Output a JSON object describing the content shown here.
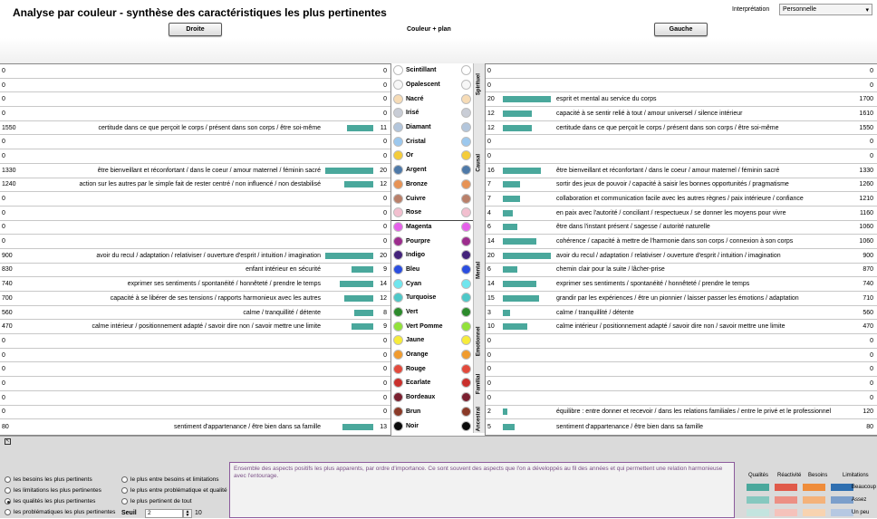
{
  "header": {
    "title": "Analyse par couleur - synthèse des caractéristiques les plus pertinentes",
    "interpretation_label": "Interprétation",
    "interpretation_value": "Personnelle",
    "left_button": "Droite",
    "right_button": "Gauche",
    "center_title": "Couleur + plan"
  },
  "rows": [
    {
      "color": "Scintillant",
      "hex": "#ffffff",
      "lt": "0",
      "ld": "",
      "lc": "0",
      "lb": 0,
      "rc": "0",
      "rd": "",
      "rb": 0,
      "rt": "0"
    },
    {
      "color": "Opalescent",
      "hex": "#f7f7f7",
      "lt": "0",
      "ld": "",
      "lc": "0",
      "lb": 0,
      "rc": "0",
      "rd": "",
      "rb": 0,
      "rt": "0"
    },
    {
      "color": "Nacré",
      "hex": "#f7dcb6",
      "lt": "0",
      "ld": "",
      "lc": "0",
      "lb": 0,
      "rc": "20",
      "rd": "esprit et mental au service du corps",
      "rb": 20,
      "rt": "1700"
    },
    {
      "color": "Irisé",
      "hex": "#c9cdd6",
      "lt": "0",
      "ld": "",
      "lc": "0",
      "lb": 0,
      "rc": "12",
      "rd": "capacité à se sentir relié à tout / amour universel / silence intérieur",
      "rb": 12,
      "rt": "1610"
    },
    {
      "color": "Diamant",
      "hex": "#b3c6dc",
      "lt": "1550",
      "ld": "certitude dans ce que perçoit le corps / présent dans son corps / être soi-même",
      "lc": "11",
      "lb": 11,
      "rc": "12",
      "rd": "certitude dans ce que perçoit le corps / présent dans son corps / être soi-même",
      "rb": 12,
      "rt": "1550"
    },
    {
      "color": "Cristal",
      "hex": "#9cc8ee",
      "lt": "0",
      "ld": "",
      "lc": "0",
      "lb": 0,
      "rc": "0",
      "rd": "",
      "rb": 0,
      "rt": "0"
    },
    {
      "color": "Or",
      "hex": "#f4cc3a",
      "lt": "0",
      "ld": "",
      "lc": "0",
      "lb": 0,
      "rc": "0",
      "rd": "",
      "rb": 0,
      "rt": "0"
    },
    {
      "color": "Argent",
      "hex": "#4e79a8",
      "lt": "1330",
      "ld": "être bienveillant et réconfortant / dans le coeur / amour maternel / féminin sacré",
      "lc": "20",
      "lb": 20,
      "rc": "16",
      "rd": "être bienveillant et réconfortant / dans le coeur / amour maternel / féminin sacré",
      "rb": 16,
      "rt": "1330"
    },
    {
      "color": "Bronze",
      "hex": "#e79355",
      "lt": "1240",
      "ld": "action sur les autres par le simple fait de rester centré / non influencé / non destabilisé",
      "lc": "12",
      "lb": 12,
      "rc": "7",
      "rd": "sortir des jeux de pouvoir / capacité à saisir les bonnes opportunités / pragmatisme",
      "rb": 7,
      "rt": "1260"
    },
    {
      "color": "Cuivre",
      "hex": "#b9806a",
      "lt": "0",
      "ld": "",
      "lc": "0",
      "lb": 0,
      "rc": "7",
      "rd": "collaboration et communication facile avec les autres règnes / paix intérieure / confiance",
      "rb": 7,
      "rt": "1210"
    },
    {
      "color": "Rose",
      "hex": "#f2bfcf",
      "lt": "0",
      "ld": "",
      "lc": "0",
      "lb": 0,
      "rc": "4",
      "rd": "en paix avec l'autorité / conciliant / respectueux / se donner les moyens pour vivre",
      "rb": 4,
      "rt": "1160"
    },
    {
      "color": "Magenta",
      "hex": "#e560e9",
      "lt": "0",
      "ld": "",
      "lc": "0",
      "lb": 0,
      "rc": "6",
      "rd": "être dans l'instant présent / sagesse / autorité naturelle",
      "rb": 6,
      "rt": "1060"
    },
    {
      "color": "Pourpre",
      "hex": "#9c2d8d",
      "lt": "0",
      "ld": "",
      "lc": "0",
      "lb": 0,
      "rc": "14",
      "rd": "cohérence / capacité à mettre de l'harmonie dans son corps / connexion à son corps",
      "rb": 14,
      "rt": "1060"
    },
    {
      "color": "Indigo",
      "hex": "#43237a",
      "lt": "900",
      "ld": "avoir du recul / adaptation /  relativiser / ouverture d'esprit / intuition / imagination",
      "lc": "20",
      "lb": 20,
      "rc": "20",
      "rd": "avoir du recul / adaptation /  relativiser / ouverture d'esprit / intuition / imagination",
      "rb": 20,
      "rt": "900"
    },
    {
      "color": "Bleu",
      "hex": "#2b4ee0",
      "lt": "830",
      "ld": "enfant intérieur en sécurité",
      "lc": "9",
      "lb": 9,
      "rc": "6",
      "rd": "chemin clair pour la suite / lâcher-prise",
      "rb": 6,
      "rt": "870"
    },
    {
      "color": "Cyan",
      "hex": "#70e6ee",
      "lt": "740",
      "ld": "exprimer ses sentiments / spontanéité / honnêteté / prendre le temps",
      "lc": "14",
      "lb": 14,
      "rc": "14",
      "rd": "exprimer ses sentiments / spontanéité / honnêteté / prendre le temps",
      "rb": 14,
      "rt": "740"
    },
    {
      "color": "Turquoise",
      "hex": "#4ec8c8",
      "lt": "700",
      "ld": "capacité à se libérer de ses tensions / rapports harmonieux avec les autres",
      "lc": "12",
      "lb": 12,
      "rc": "15",
      "rd": "grandir par les expériences / être un pionnier / laisser passer les émotions / adaptation",
      "rb": 15,
      "rt": "710"
    },
    {
      "color": "Vert",
      "hex": "#2c8a2c",
      "lt": "560",
      "ld": "calme / tranquillité / détente",
      "lc": "8",
      "lb": 8,
      "rc": "3",
      "rd": "calme / tranquillité / détente",
      "rb": 3,
      "rt": "560"
    },
    {
      "color": "Vert Pomme",
      "hex": "#92e23a",
      "lt": "470",
      "ld": "calme intérieur / positionnement adapté / savoir dire non / savoir mettre une limite",
      "lc": "9",
      "lb": 9,
      "rc": "10",
      "rd": "calme intérieur / positionnement adapté / savoir dire non / savoir mettre une limite",
      "rb": 10,
      "rt": "470"
    },
    {
      "color": "Jaune",
      "hex": "#f7ec3a",
      "lt": "0",
      "ld": "",
      "lc": "0",
      "lb": 0,
      "rc": "0",
      "rd": "",
      "rb": 0,
      "rt": "0"
    },
    {
      "color": "Orange",
      "hex": "#f09b2e",
      "lt": "0",
      "ld": "",
      "lc": "0",
      "lb": 0,
      "rc": "0",
      "rd": "",
      "rb": 0,
      "rt": "0"
    },
    {
      "color": "Rouge",
      "hex": "#e24a3c",
      "lt": "0",
      "ld": "",
      "lc": "0",
      "lb": 0,
      "rc": "0",
      "rd": "",
      "rb": 0,
      "rt": "0"
    },
    {
      "color": "Ecarlate",
      "hex": "#c9302c",
      "lt": "0",
      "ld": "",
      "lc": "0",
      "lb": 0,
      "rc": "0",
      "rd": "",
      "rb": 0,
      "rt": "0"
    },
    {
      "color": "Bordeaux",
      "hex": "#7a2030",
      "lt": "0",
      "ld": "",
      "lc": "0",
      "lb": 0,
      "rc": "0",
      "rd": "",
      "rb": 0,
      "rt": "0"
    },
    {
      "color": "Brun",
      "hex": "#8a3a28",
      "lt": "0",
      "ld": "",
      "lc": "0",
      "lb": 0,
      "rc": "2",
      "rd": "équilibre : entre donner et recevoir / dans les relations familiales /  entre le privé et le professionnel",
      "rb": 2,
      "rt": "120"
    },
    {
      "color": "Noir",
      "hex": "#0a0a0a",
      "lt": "80",
      "ld": "sentiment d'appartenance / être bien dans sa famille",
      "lc": "13",
      "lb": 13,
      "rc": "5",
      "rd": "sentiment d'appartenance / être bien dans sa famille",
      "rb": 5,
      "rt": "80"
    }
  ],
  "plans": [
    {
      "label": "Spirituel",
      "start": 0,
      "end": 2
    },
    {
      "label": "Causal",
      "start": 3,
      "end": 10
    },
    {
      "label": "Mental",
      "start": 11,
      "end": 17
    },
    {
      "label": "Emotionnel",
      "start": 18,
      "end": 20
    },
    {
      "label": "Familial",
      "start": 21,
      "end": 23
    },
    {
      "label": "Ancestral",
      "start": 24,
      "end": 25
    }
  ],
  "options": {
    "radio1": "les besoins les plus pertinents",
    "radio2": "les limitations les plus pertinentes",
    "radio3": "les qualités les plus pertinentes",
    "radio4": "les problématiques les plus pertinentes",
    "radio5": "le plus entre besoins et limitations",
    "radio6": "le plus entre problématique et qualité",
    "radio7": "le plus pertinent de tout",
    "seuil_label": "Seuil",
    "seuil_value": "2",
    "seuil_max": "10"
  },
  "info_text": "Ensemble des aspects positifs les plus apparents, par ordre d'importance. Ce sont souvent des aspects que l'on a développés au fil des années et qui permettent une relation harmonieuse avec l'entourage.",
  "legend": {
    "headers": [
      "Qualités",
      "Réactivité",
      "Besoins",
      "Limitations"
    ],
    "levels": [
      "Beaucoup",
      "Assez",
      "Un peu"
    ],
    "colors": [
      [
        "#4aa89c",
        "#e05a4a",
        "#ef8c3a",
        "#2f6fb0"
      ],
      [
        "#86c8bf",
        "#ec8f84",
        "#f4b27a",
        "#7c9fcb"
      ],
      [
        "#c3e4df",
        "#f5c2bb",
        "#f8d3b0",
        "#b6c8e2"
      ]
    ]
  }
}
